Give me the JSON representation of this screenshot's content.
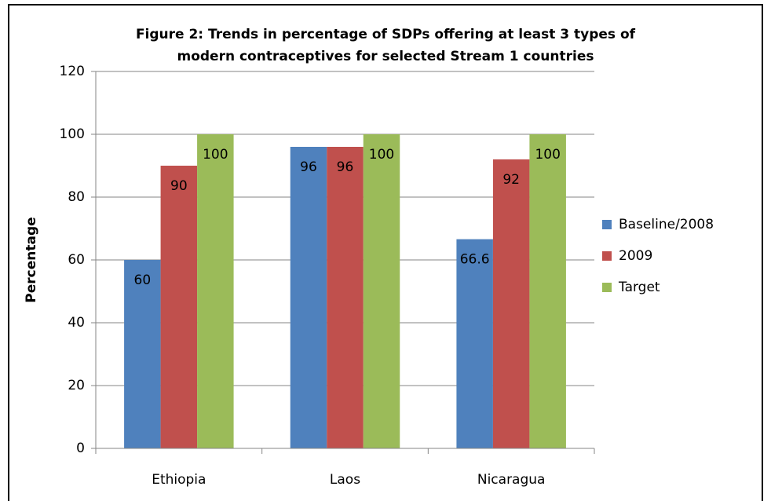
{
  "chart_data": {
    "type": "bar",
    "title": [
      "Figure 2: Trends in percentage of SDPs offering at least 3 types of",
      "modern contraceptives for selected Stream 1 countries"
    ],
    "y_label": "Percentage",
    "categories": [
      "Ethiopia",
      "Laos",
      "Nicaragua"
    ],
    "series": [
      {
        "name": "Baseline/2008",
        "color": "#4f81bd",
        "values": [
          60,
          96,
          66.6
        ]
      },
      {
        "name": "2009",
        "color": "#c0504d",
        "values": [
          90,
          96,
          92
        ]
      },
      {
        "name": "Target",
        "color": "#9bbb59",
        "values": [
          100,
          100,
          100
        ]
      }
    ],
    "ylim": [
      0,
      120
    ],
    "yticks": [
      0,
      20,
      40,
      60,
      80,
      100,
      120
    ],
    "grid": true,
    "legend": "right"
  }
}
